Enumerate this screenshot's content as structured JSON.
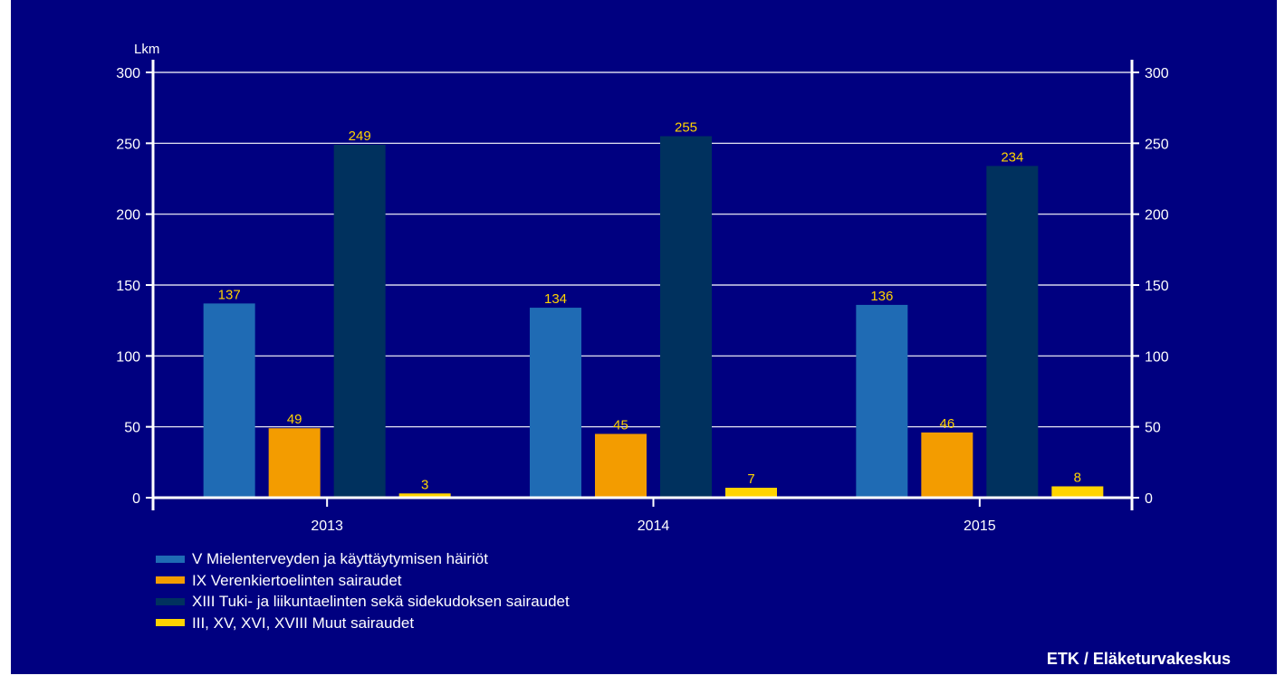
{
  "chart_data": {
    "type": "bar",
    "title": "",
    "xlabel": "",
    "ylabel": "Lkm",
    "ylim": [
      0,
      300
    ],
    "yticks": [
      0,
      50,
      100,
      150,
      200,
      250,
      300
    ],
    "grid": true,
    "legend_position": "bottom-left",
    "categories": [
      "2013",
      "2014",
      "2015"
    ],
    "series": [
      {
        "name": "V Mielenterveyden ja käyttäytymisen häiriöt",
        "values": [
          137,
          134,
          136
        ],
        "color": "#1F6BB4"
      },
      {
        "name": "IX Verenkiertoelinten sairaudet",
        "values": [
          49,
          45,
          46
        ],
        "color": "#F39C00"
      },
      {
        "name": "XIII Tuki- ja liikuntaelinten sekä sidekudoksen sairaudet",
        "values": [
          249,
          255,
          234
        ],
        "color": "#00315E"
      },
      {
        "name": "III, XV, XVI, XVIII Muut sairaudet",
        "values": [
          3,
          7,
          8
        ],
        "color": "#FFD400"
      }
    ],
    "colors": {
      "background": "#000080",
      "axis": "#ffffff",
      "gridline": "#ffffff",
      "data_label": "#FFD400"
    }
  },
  "source": "ETK / Eläketurvakeskus"
}
